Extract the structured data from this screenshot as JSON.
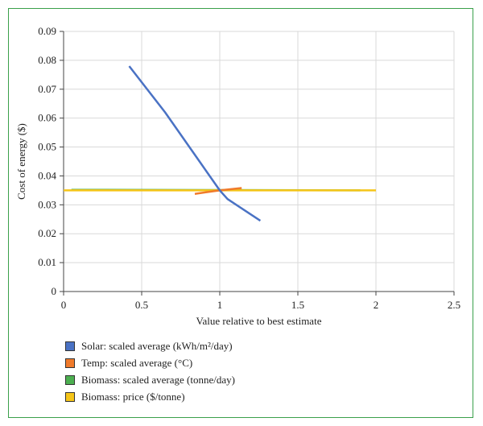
{
  "chart_data": {
    "type": "line",
    "title": "",
    "xlabel": "Value relative to best estimate",
    "ylabel": "Cost of energy ($)",
    "xlim": [
      0,
      2.5
    ],
    "ylim": [
      0,
      0.09
    ],
    "x_ticks": [
      "0",
      "0.5",
      "1",
      "1.5",
      "2",
      "2.5"
    ],
    "y_ticks": [
      "0",
      "0.01",
      "0.02",
      "0.03",
      "0.04",
      "0.05",
      "0.06",
      "0.07",
      "0.08",
      "0.09"
    ],
    "grid": true,
    "legend_position": "bottom-left",
    "series": [
      {
        "name": "Solar: scaled average (kWh/m²/day)",
        "color": "#4a72c4",
        "points": [
          [
            0.42,
            0.078
          ],
          [
            0.65,
            0.062
          ],
          [
            1.0,
            0.035
          ],
          [
            1.05,
            0.032
          ],
          [
            1.26,
            0.0245
          ]
        ]
      },
      {
        "name": "Temp: scaled average (°C)",
        "color": "#f07a2a",
        "points": [
          [
            0.84,
            0.0338
          ],
          [
            1.0,
            0.035
          ],
          [
            1.14,
            0.0358
          ]
        ]
      },
      {
        "name": "Biomass: scaled average (tonne/day)",
        "color": "#4caf50",
        "points": [
          [
            0.05,
            0.0352
          ],
          [
            1.0,
            0.0351
          ],
          [
            1.9,
            0.035
          ]
        ]
      },
      {
        "name": "Biomass: price ($/tonne)",
        "color": "#f5c518",
        "points": [
          [
            0.0,
            0.035
          ],
          [
            1.0,
            0.035
          ],
          [
            2.0,
            0.035
          ]
        ]
      }
    ]
  }
}
